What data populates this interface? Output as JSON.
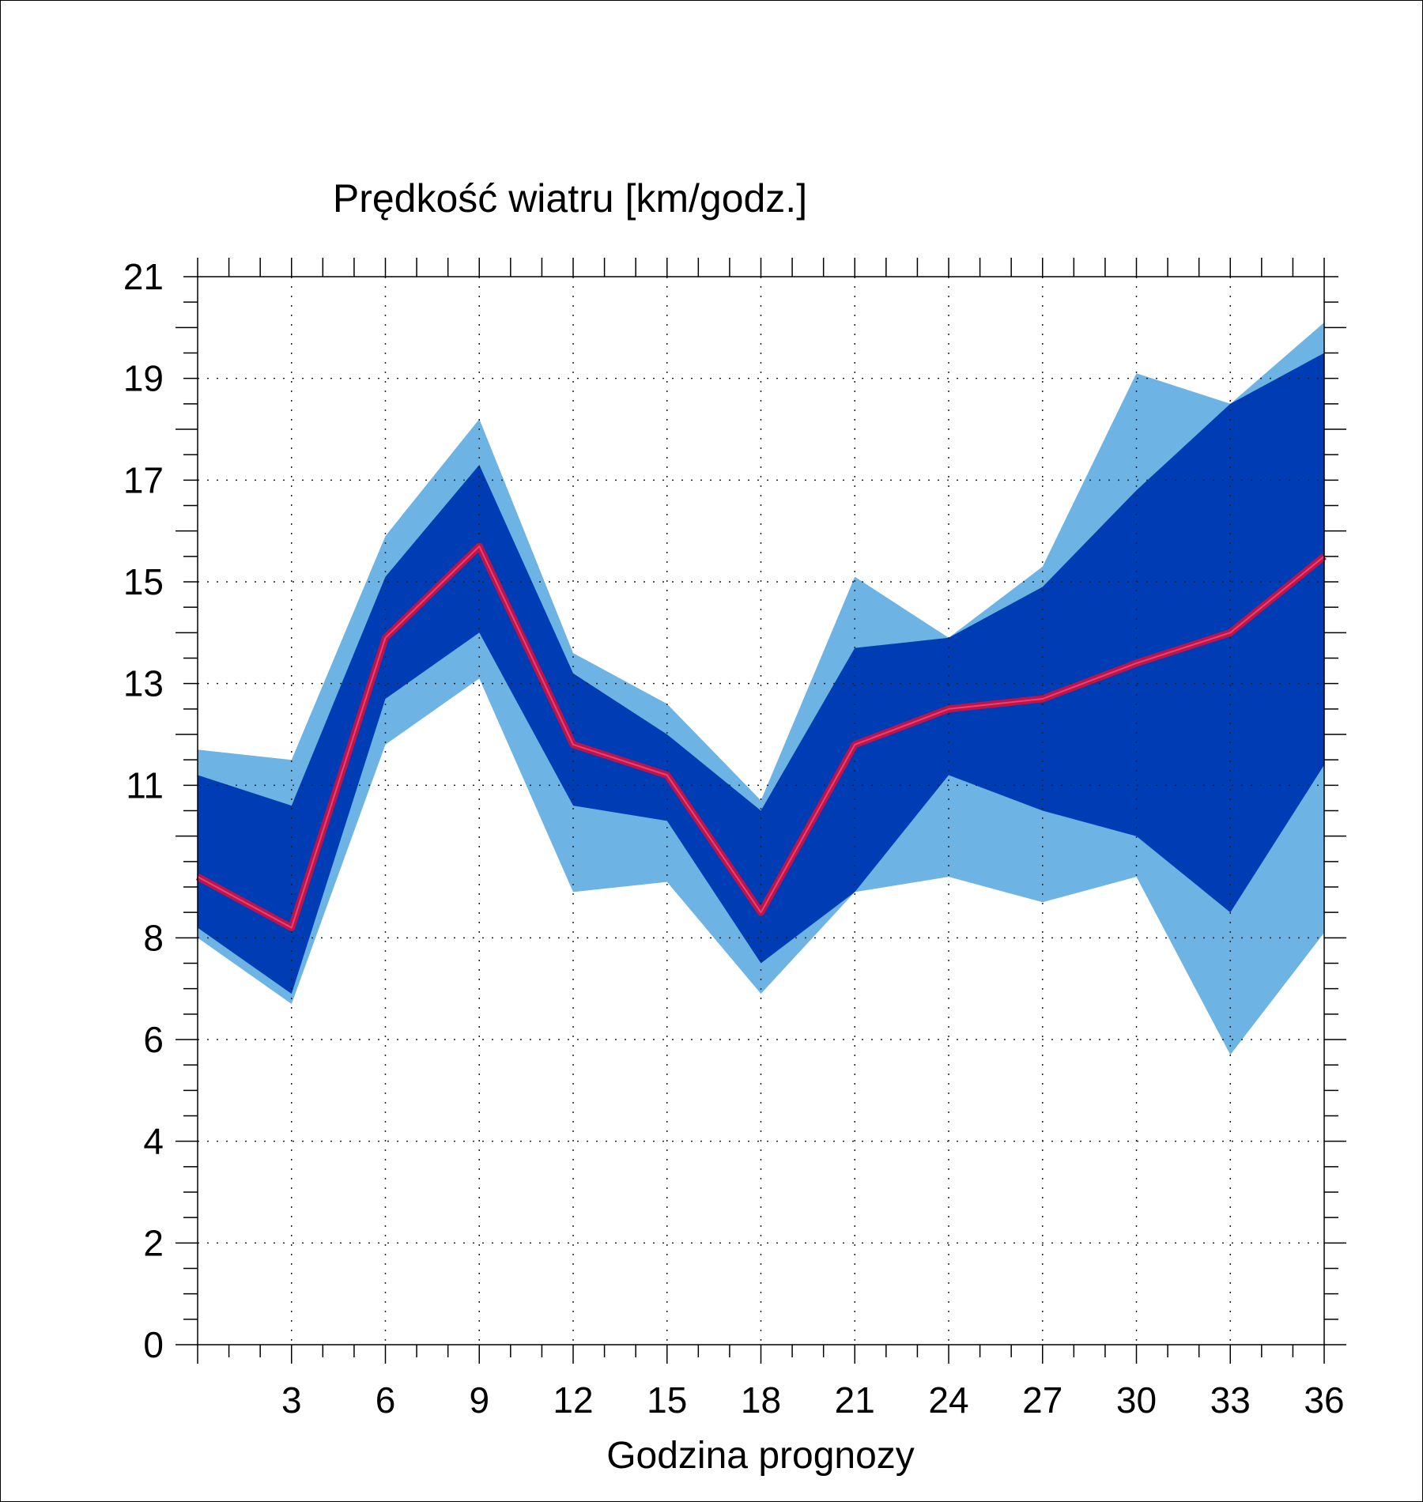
{
  "chart_data": {
    "type": "area",
    "title": "Prędkość wiatru [km/godz.]",
    "xlabel": "Godzina prognozy",
    "ylabel": "",
    "xlim": [
      0,
      36
    ],
    "ylim": [
      0,
      21
    ],
    "x_ticks": [
      3,
      6,
      9,
      12,
      15,
      18,
      21,
      24,
      27,
      30,
      33,
      36
    ],
    "y_ticks": [
      0,
      2,
      4,
      6,
      8,
      11,
      13,
      15,
      17,
      19,
      21
    ],
    "grid": "dotted",
    "colors": {
      "outer_band": "#6db3e4",
      "inner_band": "#003cb4",
      "median": "#c0134b"
    },
    "x": [
      0,
      3,
      6,
      9,
      12,
      15,
      18,
      21,
      24,
      27,
      30,
      33,
      36
    ],
    "outer_band": {
      "upper": [
        11.7,
        11.5,
        15.9,
        18.2,
        13.6,
        12.6,
        10.7,
        15.1,
        13.9,
        15.3,
        19.1,
        18.5,
        20.1
      ],
      "lower": [
        8.0,
        6.7,
        11.8,
        13.1,
        8.9,
        9.1,
        6.9,
        8.9,
        9.2,
        8.7,
        9.2,
        5.7,
        8.1
      ]
    },
    "inner_band": {
      "upper": [
        11.2,
        10.6,
        15.1,
        17.3,
        13.2,
        12.0,
        10.5,
        13.7,
        13.9,
        14.9,
        16.8,
        18.5,
        19.5
      ],
      "lower": [
        8.2,
        6.9,
        12.7,
        14.0,
        10.6,
        10.3,
        7.5,
        8.9,
        11.2,
        10.5,
        10.0,
        8.5,
        11.4
      ]
    },
    "median": [
      9.2,
      8.2,
      13.9,
      15.7,
      11.8,
      11.2,
      8.5,
      11.8,
      12.5,
      12.7,
      13.4,
      14.0,
      15.5
    ]
  }
}
